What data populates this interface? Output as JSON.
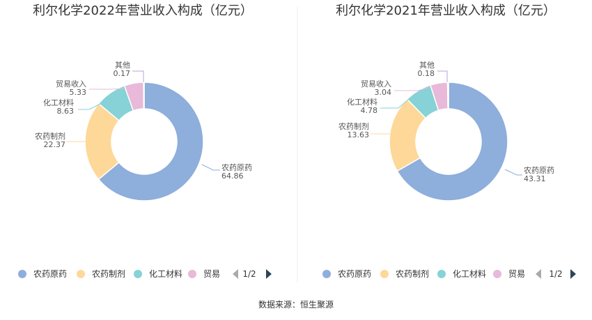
{
  "palette": [
    "#8eaedb",
    "#fdd898",
    "#86d2d6",
    "#e8b9d9",
    "#b8a2dc"
  ],
  "footer": {
    "source": "数据来源：恒生聚源"
  },
  "chart_data": [
    {
      "type": "pie",
      "variant": "donut",
      "title": "利尔化学2022年营业收入构成（亿元）",
      "categories": [
        "农药原药",
        "农药制剂",
        "化工材料",
        "贸易收入",
        "其他"
      ],
      "values": [
        64.86,
        22.37,
        8.63,
        5.33,
        0.17
      ],
      "value_labels": [
        "64.86",
        "22.37",
        "8.63",
        "5.33",
        "0.17"
      ],
      "legend": {
        "position": "bottom",
        "items": [
          "农药原药",
          "农药制剂",
          "化工材料",
          "贸易"
        ],
        "page": "1/2"
      }
    },
    {
      "type": "pie",
      "variant": "donut",
      "title": "利尔化学2021年营业收入构成（亿元）",
      "categories": [
        "农药原药",
        "农药制剂",
        "化工材料",
        "贸易收入",
        "其他"
      ],
      "values": [
        43.31,
        13.63,
        4.78,
        3.04,
        0.18
      ],
      "value_labels": [
        "43.31",
        "13.63",
        "4.78",
        "3.04",
        "0.18"
      ],
      "legend": {
        "position": "bottom",
        "items": [
          "农药原药",
          "农药制剂",
          "化工材料",
          "贸易"
        ],
        "page": "1/2"
      }
    }
  ]
}
